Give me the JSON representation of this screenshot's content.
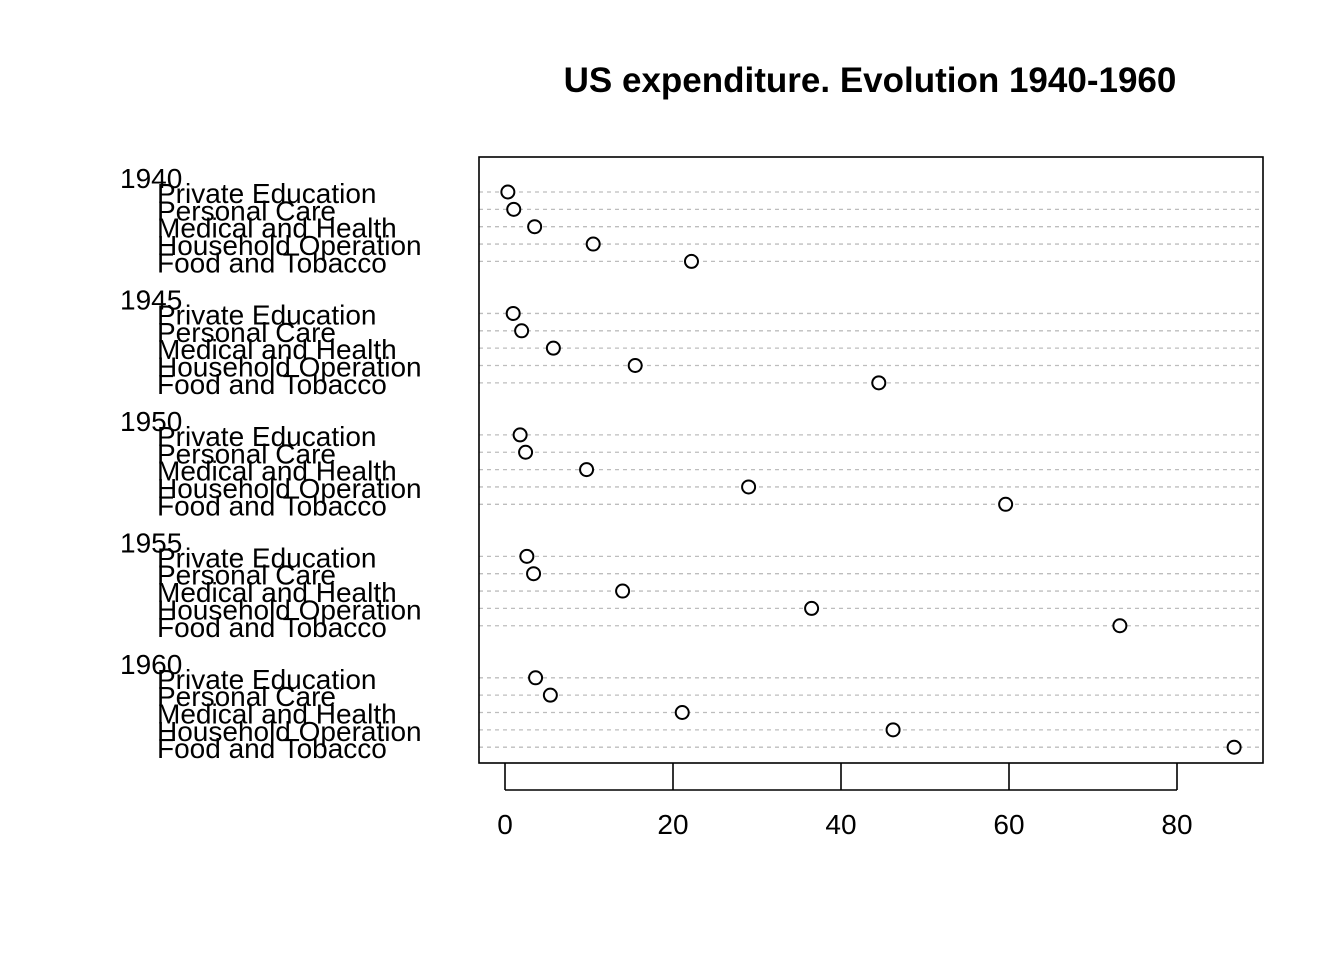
{
  "chart_data": {
    "type": "scatter",
    "subtype": "dotchart",
    "title": "US expenditure. Evolution 1940-1960",
    "xlabel": "",
    "ylabel": "",
    "xlim": [
      0,
      90
    ],
    "x_ticks": [
      "0",
      "20",
      "40",
      "60",
      "80"
    ],
    "grid": "dashed horizontal lines per item",
    "groups": [
      {
        "name": "1940",
        "categories": [
          "Private Education",
          "Personal Care",
          "Medical and Health",
          "Household Operation",
          "Food and Tobacco"
        ],
        "values": [
          0.341,
          1.04,
          3.53,
          10.5,
          22.2
        ]
      },
      {
        "name": "1945",
        "categories": [
          "Private Education",
          "Personal Care",
          "Medical and Health",
          "Household Operation",
          "Food and Tobacco"
        ],
        "values": [
          0.974,
          1.98,
          5.76,
          15.5,
          44.5
        ]
      },
      {
        "name": "1950",
        "categories": [
          "Private Education",
          "Personal Care",
          "Medical and Health",
          "Household Operation",
          "Food and Tobacco"
        ],
        "values": [
          1.8,
          2.45,
          9.71,
          29.0,
          59.6
        ]
      },
      {
        "name": "1955",
        "categories": [
          "Private Education",
          "Personal Care",
          "Medical and Health",
          "Household Operation",
          "Food and Tobacco"
        ],
        "values": [
          2.6,
          3.4,
          14.0,
          36.5,
          73.2
        ]
      },
      {
        "name": "1960",
        "categories": [
          "Private Education",
          "Personal Care",
          "Medical and Health",
          "Household Operation",
          "Food and Tobacco"
        ],
        "values": [
          3.64,
          5.4,
          21.1,
          46.2,
          86.8
        ]
      }
    ]
  }
}
